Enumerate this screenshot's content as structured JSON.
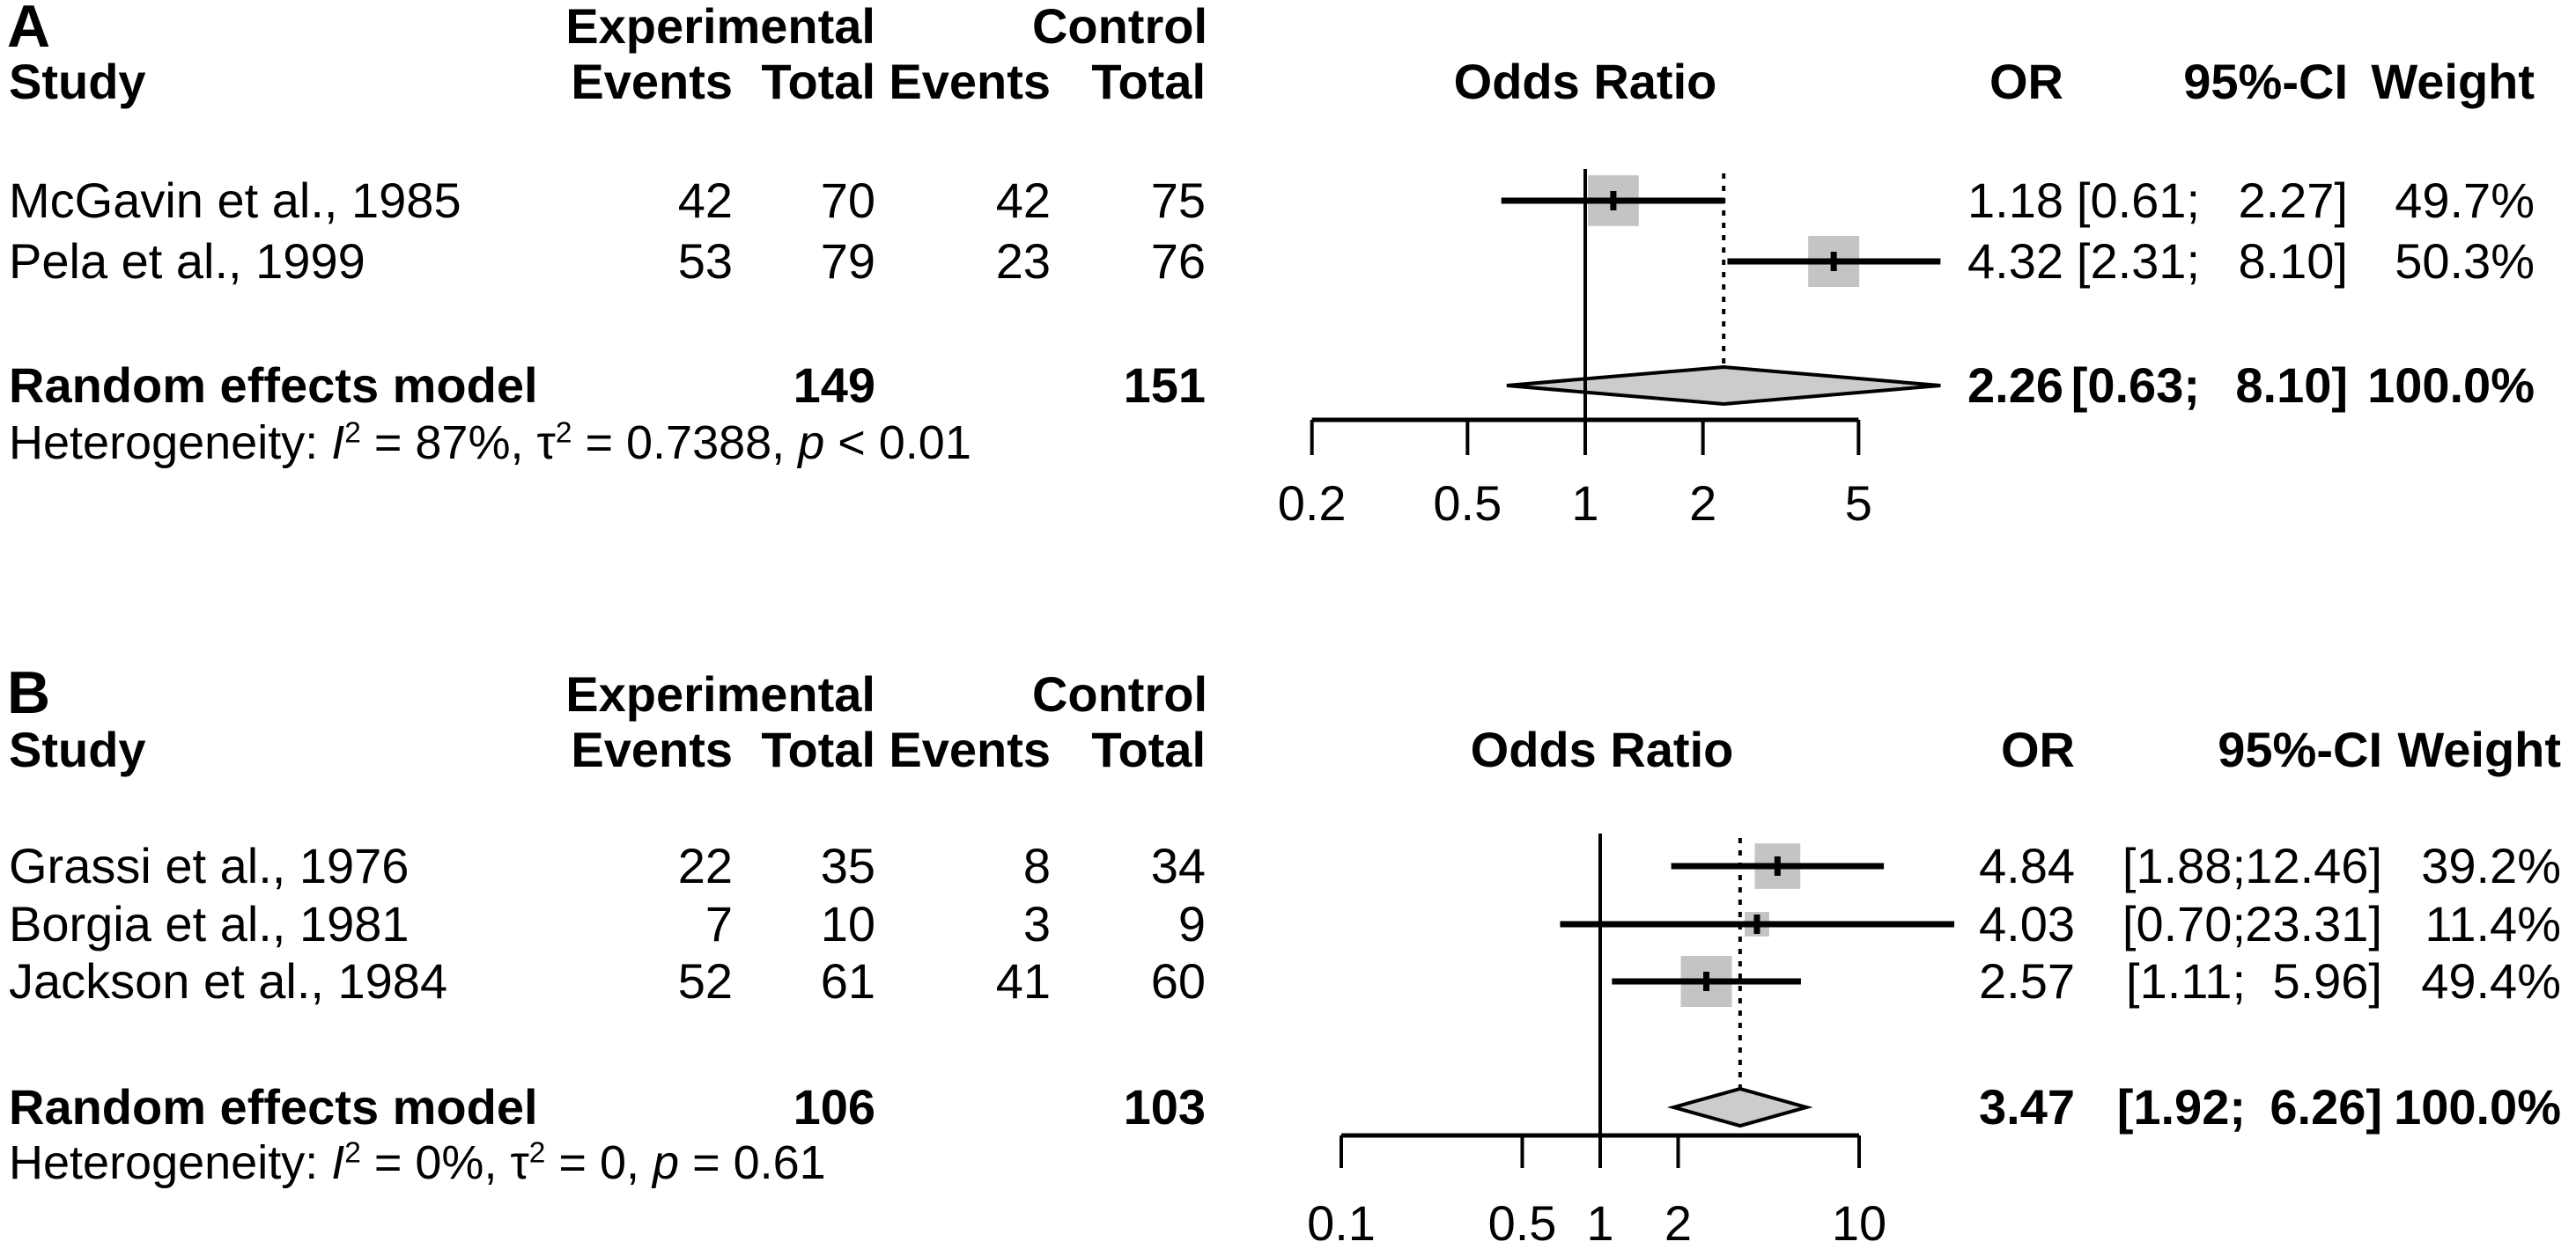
{
  "columns": {
    "study": "Study",
    "group_experimental": "Experimental",
    "group_control": "Control",
    "events": "Events",
    "total": "Total",
    "odds_ratio": "Odds Ratio",
    "or": "OR",
    "ci": "95%-CI",
    "weight": "Weight"
  },
  "colors": {
    "square_fill": "#c4c4c4",
    "diamond_fill": "#cccccc",
    "line_color": "#000000",
    "background": "#ffffff"
  },
  "chart_data": [
    {
      "type": "forest",
      "panel_label": "A",
      "effect_measure": "Odds Ratio",
      "x_scale": "log",
      "reference_line": 1,
      "dashed_line_at": 2.26,
      "x_axis": {
        "ticks": [
          0.2,
          0.5,
          1,
          2,
          5
        ],
        "tick_labels": [
          "0.2",
          "0.5",
          "1",
          "2",
          "5"
        ]
      },
      "studies": [
        {
          "name": "McGavin et al., 1985",
          "exp_events": 42,
          "exp_total": 70,
          "ctrl_events": 42,
          "ctrl_total": 75,
          "or": 1.18,
          "ci_low": 0.61,
          "ci_high": 2.27,
          "weight_pct": 49.7,
          "or_text": "1.18",
          "ci_low_text": "[0.61;",
          "ci_high_text": "2.27]",
          "weight_text": "49.7%"
        },
        {
          "name": "Pela et al., 1999",
          "exp_events": 53,
          "exp_total": 79,
          "ctrl_events": 23,
          "ctrl_total": 76,
          "or": 4.32,
          "ci_low": 2.31,
          "ci_high": 8.1,
          "weight_pct": 50.3,
          "or_text": "4.32",
          "ci_low_text": "[2.31;",
          "ci_high_text": "8.10]",
          "weight_text": "50.3%"
        }
      ],
      "pooled": {
        "label": "Random effects model",
        "exp_total": 149,
        "ctrl_total": 151,
        "or": 2.26,
        "ci_low": 0.63,
        "ci_high": 8.1,
        "weight_pct": 100.0,
        "or_text": "2.26",
        "ci_low_text": "[0.63;",
        "ci_high_text": "8.10]",
        "weight_text": "100.0%"
      },
      "heterogeneity": {
        "text_plain": "Heterogeneity: I² = 87%, τ² = 0.7388, p < 0.01",
        "parts": {
          "prefix": "Heterogeneity: ",
          "i_sym": "I",
          "i_sup": "2",
          "after_i": " = 87%, ",
          "tau_sym": "τ",
          "tau_sup": "2",
          "after_tau": " = 0.7388, ",
          "p_sym": "p",
          "after_p": " < 0.01"
        }
      }
    },
    {
      "type": "forest",
      "panel_label": "B",
      "effect_measure": "Odds Ratio",
      "x_scale": "log",
      "reference_line": 1,
      "dashed_line_at": 3.47,
      "x_axis": {
        "ticks": [
          0.1,
          0.5,
          1,
          2,
          10
        ],
        "tick_labels": [
          "0.1",
          "0.5",
          "1",
          "2",
          "10"
        ]
      },
      "studies": [
        {
          "name": "Grassi et al., 1976",
          "exp_events": 22,
          "exp_total": 35,
          "ctrl_events": 8,
          "ctrl_total": 34,
          "or": 4.84,
          "ci_low": 1.88,
          "ci_high": 12.46,
          "weight_pct": 39.2,
          "or_text": "4.84",
          "ci_low_text": "[1.88;",
          "ci_high_text": "12.46]",
          "weight_text": "39.2%"
        },
        {
          "name": "Borgia et al., 1981",
          "exp_events": 7,
          "exp_total": 10,
          "ctrl_events": 3,
          "ctrl_total": 9,
          "or": 4.03,
          "ci_low": 0.7,
          "ci_high": 23.31,
          "weight_pct": 11.4,
          "or_text": "4.03",
          "ci_low_text": "[0.70;",
          "ci_high_text": "23.31]",
          "weight_text": "11.4%"
        },
        {
          "name": "Jackson et al., 1984",
          "exp_events": 52,
          "exp_total": 61,
          "ctrl_events": 41,
          "ctrl_total": 60,
          "or": 2.57,
          "ci_low": 1.11,
          "ci_high": 5.96,
          "weight_pct": 49.4,
          "or_text": "2.57",
          "ci_low_text": "[1.11;",
          "ci_high_text": "5.96]",
          "weight_text": "49.4%"
        }
      ],
      "pooled": {
        "label": "Random effects model",
        "exp_total": 106,
        "ctrl_total": 103,
        "or": 3.47,
        "ci_low": 1.92,
        "ci_high": 6.26,
        "weight_pct": 100.0,
        "or_text": "3.47",
        "ci_low_text": "[1.92;",
        "ci_high_text": "6.26]",
        "weight_text": "100.0%"
      },
      "heterogeneity": {
        "text_plain": "Heterogeneity: I² = 0%, τ² = 0, p = 0.61",
        "parts": {
          "prefix": "Heterogeneity: ",
          "i_sym": "I",
          "i_sup": "2",
          "after_i": " = 0%, ",
          "tau_sym": "τ",
          "tau_sup": "2",
          "after_tau": " = 0, ",
          "p_sym": "p",
          "after_p": " = 0.61"
        }
      }
    }
  ]
}
